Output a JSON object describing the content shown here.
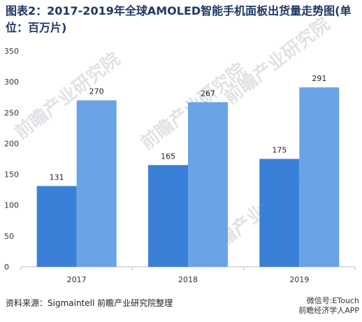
{
  "header": {
    "title": "图表2：2017-2019年全球AMOLED智能手机面板出货量走势图(单位：百万片)"
  },
  "footer": {
    "source": "资料来源：Sigmaintell 前瞻产业研究院整理",
    "wechat_id": "微信号:ETouch",
    "app_name": "前瞻经济学人APP"
  },
  "watermark": {
    "text": "前瞻产业研究院"
  },
  "chart_data": {
    "type": "bar",
    "categories": [
      "2017",
      "2018",
      "2019"
    ],
    "series": [
      {
        "values": [
          131,
          165,
          175
        ],
        "color": "#3a7fd8"
      },
      {
        "values": [
          270,
          267,
          291
        ],
        "color": "#6aa4e6"
      }
    ],
    "ylim": [
      0,
      350
    ],
    "yticks": [
      0,
      50,
      100,
      150,
      200,
      250,
      300,
      350
    ],
    "grid": false,
    "legend": "none"
  }
}
